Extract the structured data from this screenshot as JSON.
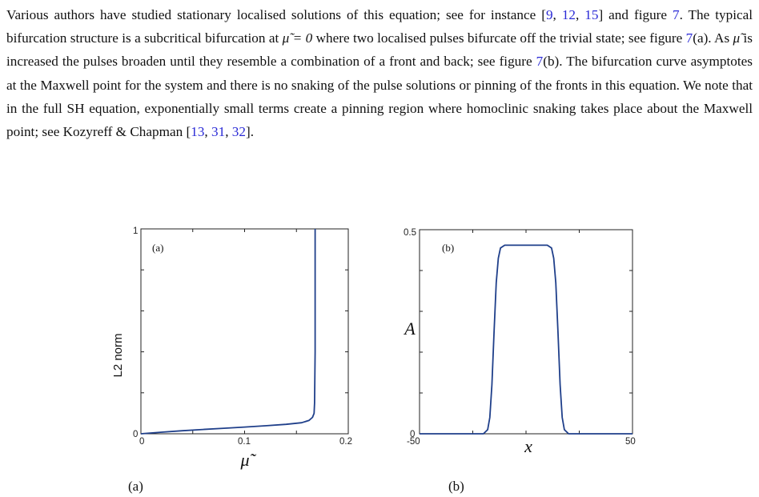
{
  "paragraph": {
    "s1": "Various authors have studied stationary localised solutions of this equation; see for instance [",
    "r9": "9",
    "sep1": ", ",
    "r12": "12",
    "sep2": ", ",
    "r15": "15",
    "s2": "] and figure ",
    "f7a": "7",
    "s3": ". The typical bifurcation structure is a subcritical bifurcation at ",
    "mu1": "μ̃ = 0",
    "s4": " where two localised pulses bifurcate off the trivial state; see figure ",
    "f7b": "7",
    "s5": "(a). As ",
    "mu2": "μ̃",
    "s6": " is increased the pulses broaden until they resemble a combination of a front and back; see figure ",
    "f7c": "7",
    "s7": "(b). The bifurcation curve asymptotes at the Maxwell point for the system and there is no snaking of the pulse solutions or pinning of the fronts in this equation. We note that in the full SH equation, exponentially small terms create a pinning region where homoclinic snaking takes place about the Maxwell point; see Kozyreff & Chapman [",
    "r13": "13",
    "sep3": ", ",
    "r31": "31",
    "sep4": ", ",
    "r32": "32",
    "s8": "]."
  },
  "colors": {
    "curve": "#1f3f8a",
    "link": "#2a2ad6"
  },
  "chart_data": [
    {
      "type": "line",
      "panel_label": "(a)",
      "xlabel": "μ̃",
      "ylabel": "L2 norm",
      "xlim": [
        0,
        0.2
      ],
      "ylim": [
        0,
        1
      ],
      "x_ticks": [
        "0",
        "0.1",
        "0.2"
      ],
      "y_ticks": [
        "0",
        "1"
      ],
      "x": [
        0,
        0.02,
        0.04,
        0.06,
        0.08,
        0.1,
        0.12,
        0.14,
        0.155,
        0.162,
        0.1655,
        0.167,
        0.1675,
        0.168,
        0.168
      ],
      "y": [
        0,
        0.008,
        0.015,
        0.021,
        0.027,
        0.033,
        0.039,
        0.046,
        0.054,
        0.065,
        0.08,
        0.1,
        0.15,
        0.4,
        1.0
      ]
    },
    {
      "type": "line",
      "panel_label": "(b)",
      "xlabel": "x",
      "ylabel": "A",
      "xlim": [
        -50,
        50
      ],
      "ylim": [
        0,
        0.5
      ],
      "x_ticks": [
        "-50",
        "50"
      ],
      "y_ticks": [
        "0",
        "0.5"
      ],
      "x": [
        -50,
        -20,
        -18,
        -17,
        -16,
        -15,
        -14,
        -13,
        -12,
        -10,
        10,
        12,
        13,
        14,
        15,
        16,
        17,
        18,
        20,
        50
      ],
      "y": [
        0,
        0,
        0.01,
        0.04,
        0.12,
        0.25,
        0.37,
        0.43,
        0.455,
        0.462,
        0.462,
        0.455,
        0.43,
        0.37,
        0.25,
        0.12,
        0.04,
        0.01,
        0,
        0
      ]
    }
  ],
  "captions": {
    "a": "(a)",
    "b": "(b)"
  }
}
